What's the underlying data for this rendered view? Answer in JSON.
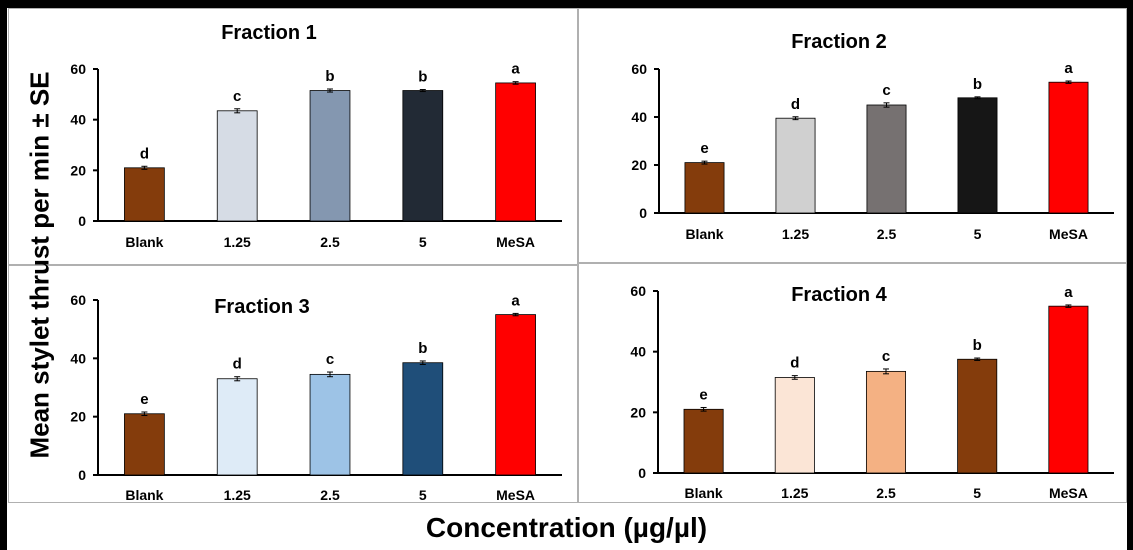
{
  "figure": {
    "y_axis_label": "Mean stylet thrust per min ± SE",
    "x_axis_label": "Concentration (µg/µl)"
  },
  "chart_data": [
    {
      "type": "bar",
      "title": "Fraction 1",
      "categories": [
        "Blank",
        "1.25",
        "2.5",
        "5",
        "MeSA"
      ],
      "values": [
        21,
        43.5,
        51.5,
        51.5,
        54.5
      ],
      "errors": [
        0.6,
        0.8,
        0.6,
        0.4,
        0.5
      ],
      "letters": [
        "d",
        "c",
        "b",
        "b",
        "a"
      ],
      "colors": [
        "#843C0C",
        "#D6DCE5",
        "#8497B0",
        "#222A35",
        "#FF0000"
      ],
      "yticks": [
        0,
        20,
        40,
        60
      ],
      "ylim": [
        0,
        60
      ]
    },
    {
      "type": "bar",
      "title": "Fraction 2",
      "categories": [
        "Blank",
        "1.25",
        "2.5",
        "5",
        "MeSA"
      ],
      "values": [
        21,
        39.5,
        45,
        48,
        54.5
      ],
      "errors": [
        0.6,
        0.6,
        0.9,
        0.4,
        0.5
      ],
      "letters": [
        "e",
        "d",
        "c",
        "b",
        "a"
      ],
      "colors": [
        "#843C0C",
        "#D0D0D0",
        "#767171",
        "#161616",
        "#FF0000"
      ],
      "yticks": [
        0,
        20,
        40,
        60
      ],
      "ylim": [
        0,
        60
      ]
    },
    {
      "type": "bar",
      "title": "Fraction 3",
      "categories": [
        "Blank",
        "1.25",
        "2.5",
        "5",
        "MeSA"
      ],
      "values": [
        21,
        33,
        34.5,
        38.5,
        55
      ],
      "errors": [
        0.6,
        0.7,
        0.8,
        0.6,
        0.4
      ],
      "letters": [
        "e",
        "d",
        "c",
        "b",
        "a"
      ],
      "colors": [
        "#843C0C",
        "#DEEBF7",
        "#9DC3E6",
        "#1F4E79",
        "#FF0000"
      ],
      "yticks": [
        0,
        20,
        40,
        60
      ],
      "ylim": [
        0,
        60
      ]
    },
    {
      "type": "bar",
      "title": "Fraction 4",
      "categories": [
        "Blank",
        "1.25",
        "2.5",
        "5",
        "MeSA"
      ],
      "values": [
        21,
        31.5,
        33.5,
        37.5,
        55
      ],
      "errors": [
        0.6,
        0.6,
        0.8,
        0.4,
        0.4
      ],
      "letters": [
        "e",
        "d",
        "c",
        "b",
        "a"
      ],
      "colors": [
        "#843C0C",
        "#FBE5D6",
        "#F4B183",
        "#843C0C",
        "#FF0000"
      ],
      "yticks": [
        0,
        20,
        40,
        60
      ],
      "ylim": [
        0,
        60
      ]
    }
  ]
}
